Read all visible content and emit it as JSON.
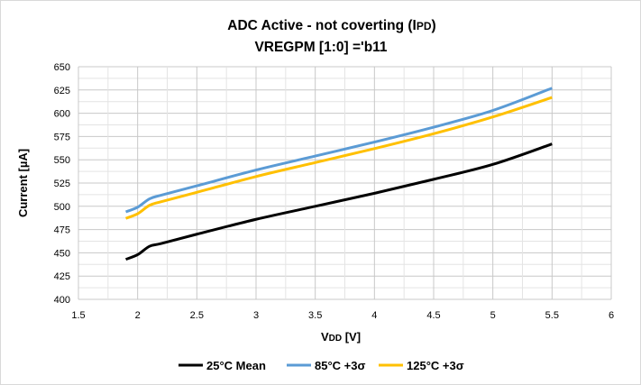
{
  "chart_data": {
    "type": "line",
    "title": "ADC Active - not coverting (I",
    "title_sub": "PD",
    "title_end": ")",
    "subtitle": "VREGPM [1:0] ='b11",
    "xlabel": "V",
    "xlabel_sub": "DD",
    "xlabel_end": " [V]",
    "ylabel": "Current [µA]",
    "xlim": [
      1.5,
      6
    ],
    "ylim": [
      400,
      650
    ],
    "xticks": [
      "1.5",
      "2",
      "2.5",
      "3",
      "3.5",
      "4",
      "4.5",
      "5",
      "5.5",
      "6"
    ],
    "yticks": [
      "400",
      "425",
      "450",
      "475",
      "500",
      "525",
      "550",
      "575",
      "600",
      "625",
      "650"
    ],
    "grid": true,
    "legend_position": "bottom",
    "x": [
      1.9,
      2.0,
      2.1,
      2.2,
      2.5,
      3.0,
      3.5,
      4.0,
      4.5,
      5.0,
      5.5
    ],
    "series": [
      {
        "name": "25°C Mean",
        "color": "#000000",
        "values": [
          443,
          448,
          457,
          460,
          470,
          486,
          500,
          514,
          529,
          545,
          567
        ]
      },
      {
        "name": "85°C +3σ",
        "color": "#5b9bd5",
        "values": [
          494,
          499,
          508,
          512,
          522,
          539,
          554,
          569,
          585,
          603,
          627
        ]
      },
      {
        "name": "125°C +3σ",
        "color": "#ffc000",
        "values": [
          487,
          492,
          501,
          505,
          515,
          532,
          547,
          562,
          578,
          596,
          617
        ]
      }
    ]
  }
}
